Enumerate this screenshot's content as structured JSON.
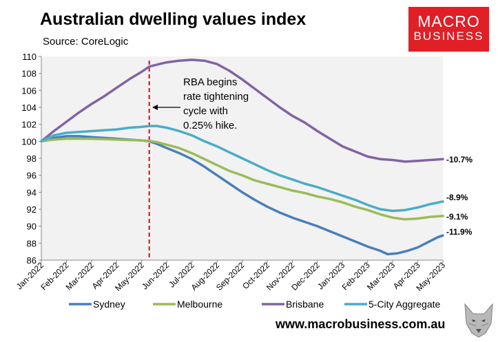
{
  "header": {
    "title": "Australian dwelling values index",
    "subtitle": "Source: CoreLogic",
    "logo_line1": "MACRO",
    "logo_line2": "BUSINESS",
    "logo_color": "#e01f26"
  },
  "footer": {
    "website": "www.macrobusiness.com.au"
  },
  "chart_data": {
    "type": "line",
    "title": "Australian dwelling values index",
    "xlabel": "",
    "ylabel": "",
    "ylim": [
      86,
      110
    ],
    "yticks": [
      86,
      88,
      90,
      92,
      94,
      96,
      98,
      100,
      102,
      104,
      106,
      108,
      110
    ],
    "x_range_months": [
      0,
      16
    ],
    "xtick_labels": [
      "Jan-2022",
      "Feb-2022",
      "Mar-2022",
      "Apr-2022",
      "May-2022",
      "Jun-2022",
      "Jul-2022",
      "Aug-2022",
      "Sep-2022",
      "Oct-2022",
      "Nov-2022",
      "Dec-2022",
      "Jan-2023",
      "Feb-2023",
      "Mar-2023",
      "Apr-2023",
      "May-2023"
    ],
    "grid": false,
    "legend_position": "bottom",
    "series": [
      {
        "name": "Sydney",
        "color": "#4a7ebb",
        "end_label": "-11.9%",
        "points": [
          [
            0,
            100
          ],
          [
            0.5,
            100.4
          ],
          [
            1,
            100.6
          ],
          [
            1.5,
            100.6
          ],
          [
            2,
            100.5
          ],
          [
            2.5,
            100.4
          ],
          [
            3,
            100.3
          ],
          [
            3.5,
            100.2
          ],
          [
            4,
            100.1
          ],
          [
            4.3,
            100
          ],
          [
            4.6,
            99.7
          ],
          [
            5,
            99.2
          ],
          [
            5.5,
            98.6
          ],
          [
            6,
            97.9
          ],
          [
            6.5,
            97
          ],
          [
            7,
            96
          ],
          [
            7.5,
            95
          ],
          [
            8,
            94
          ],
          [
            8.5,
            93.1
          ],
          [
            9,
            92.3
          ],
          [
            9.5,
            91.6
          ],
          [
            10,
            91
          ],
          [
            10.5,
            90.5
          ],
          [
            11,
            90
          ],
          [
            11.5,
            89.4
          ],
          [
            12,
            88.8
          ],
          [
            12.5,
            88.2
          ],
          [
            13,
            87.6
          ],
          [
            13.5,
            87.1
          ],
          [
            13.8,
            86.7
          ],
          [
            14.2,
            86.8
          ],
          [
            14.6,
            87.1
          ],
          [
            15,
            87.5
          ],
          [
            15.4,
            88.1
          ],
          [
            15.8,
            88.7
          ],
          [
            16,
            88.9
          ]
        ]
      },
      {
        "name": "Melbourne",
        "color": "#9bbb59",
        "end_label": "-9.1%",
        "points": [
          [
            0,
            100
          ],
          [
            0.5,
            100.2
          ],
          [
            1,
            100.3
          ],
          [
            2,
            100.3
          ],
          [
            3,
            100.2
          ],
          [
            4,
            100.1
          ],
          [
            4.3,
            100.05
          ],
          [
            4.6,
            99.9
          ],
          [
            5,
            99.6
          ],
          [
            5.5,
            99.2
          ],
          [
            6,
            98.6
          ],
          [
            6.5,
            97.9
          ],
          [
            7,
            97.2
          ],
          [
            7.5,
            96.5
          ],
          [
            8,
            96
          ],
          [
            8.5,
            95.4
          ],
          [
            9,
            95
          ],
          [
            9.5,
            94.6
          ],
          [
            10,
            94.2
          ],
          [
            10.5,
            93.9
          ],
          [
            11,
            93.5
          ],
          [
            11.5,
            93.2
          ],
          [
            12,
            92.8
          ],
          [
            12.5,
            92.3
          ],
          [
            13,
            91.9
          ],
          [
            13.5,
            91.4
          ],
          [
            14,
            91
          ],
          [
            14.5,
            90.8
          ],
          [
            15,
            90.9
          ],
          [
            15.5,
            91.1
          ],
          [
            16,
            91.2
          ]
        ]
      },
      {
        "name": "Brisbane",
        "color": "#8064a2",
        "end_label": "-10.7%",
        "points": [
          [
            0,
            100
          ],
          [
            0.5,
            101.2
          ],
          [
            1,
            102.3
          ],
          [
            1.5,
            103.4
          ],
          [
            2,
            104.4
          ],
          [
            2.5,
            105.3
          ],
          [
            3,
            106.3
          ],
          [
            3.5,
            107.3
          ],
          [
            4,
            108.2
          ],
          [
            4.3,
            108.8
          ],
          [
            4.7,
            109.1
          ],
          [
            5,
            109.3
          ],
          [
            5.5,
            109.5
          ],
          [
            6,
            109.6
          ],
          [
            6.5,
            109.5
          ],
          [
            7,
            109.1
          ],
          [
            7.5,
            108.3
          ],
          [
            8,
            107.3
          ],
          [
            8.5,
            106.2
          ],
          [
            9,
            105.1
          ],
          [
            9.5,
            104
          ],
          [
            10,
            103
          ],
          [
            10.5,
            102.2
          ],
          [
            11,
            101.2
          ],
          [
            11.5,
            100.3
          ],
          [
            12,
            99.4
          ],
          [
            12.5,
            98.8
          ],
          [
            13,
            98.2
          ],
          [
            13.5,
            97.9
          ],
          [
            14,
            97.8
          ],
          [
            14.5,
            97.6
          ],
          [
            15,
            97.7
          ],
          [
            15.5,
            97.8
          ],
          [
            16,
            97.9
          ]
        ]
      },
      {
        "name": "5-City Aggregate",
        "color": "#4bacc6",
        "end_label": "-8.9%",
        "points": [
          [
            0,
            100
          ],
          [
            0.5,
            100.7
          ],
          [
            1,
            101
          ],
          [
            1.5,
            101.1
          ],
          [
            2,
            101.2
          ],
          [
            2.5,
            101.3
          ],
          [
            3,
            101.4
          ],
          [
            3.5,
            101.6
          ],
          [
            4,
            101.7
          ],
          [
            4.3,
            101.8
          ],
          [
            4.6,
            101.8
          ],
          [
            5,
            101.6
          ],
          [
            5.5,
            101.2
          ],
          [
            6,
            100.7
          ],
          [
            6.5,
            100
          ],
          [
            7,
            99.4
          ],
          [
            7.5,
            98.7
          ],
          [
            8,
            98
          ],
          [
            8.5,
            97.3
          ],
          [
            9,
            96.6
          ],
          [
            9.5,
            96
          ],
          [
            10,
            95.5
          ],
          [
            10.5,
            95
          ],
          [
            11,
            94.6
          ],
          [
            11.5,
            94.1
          ],
          [
            12,
            93.6
          ],
          [
            12.5,
            93.1
          ],
          [
            13,
            92.5
          ],
          [
            13.5,
            92
          ],
          [
            14,
            91.8
          ],
          [
            14.5,
            91.9
          ],
          [
            15,
            92.2
          ],
          [
            15.5,
            92.6
          ],
          [
            16,
            92.9
          ]
        ]
      }
    ],
    "vline": {
      "x": 4.3,
      "color": "#e0001a"
    },
    "annotation": {
      "lines": [
        "RBA begins",
        "rate tightening",
        "cycle with",
        "0.25% hike."
      ]
    }
  }
}
